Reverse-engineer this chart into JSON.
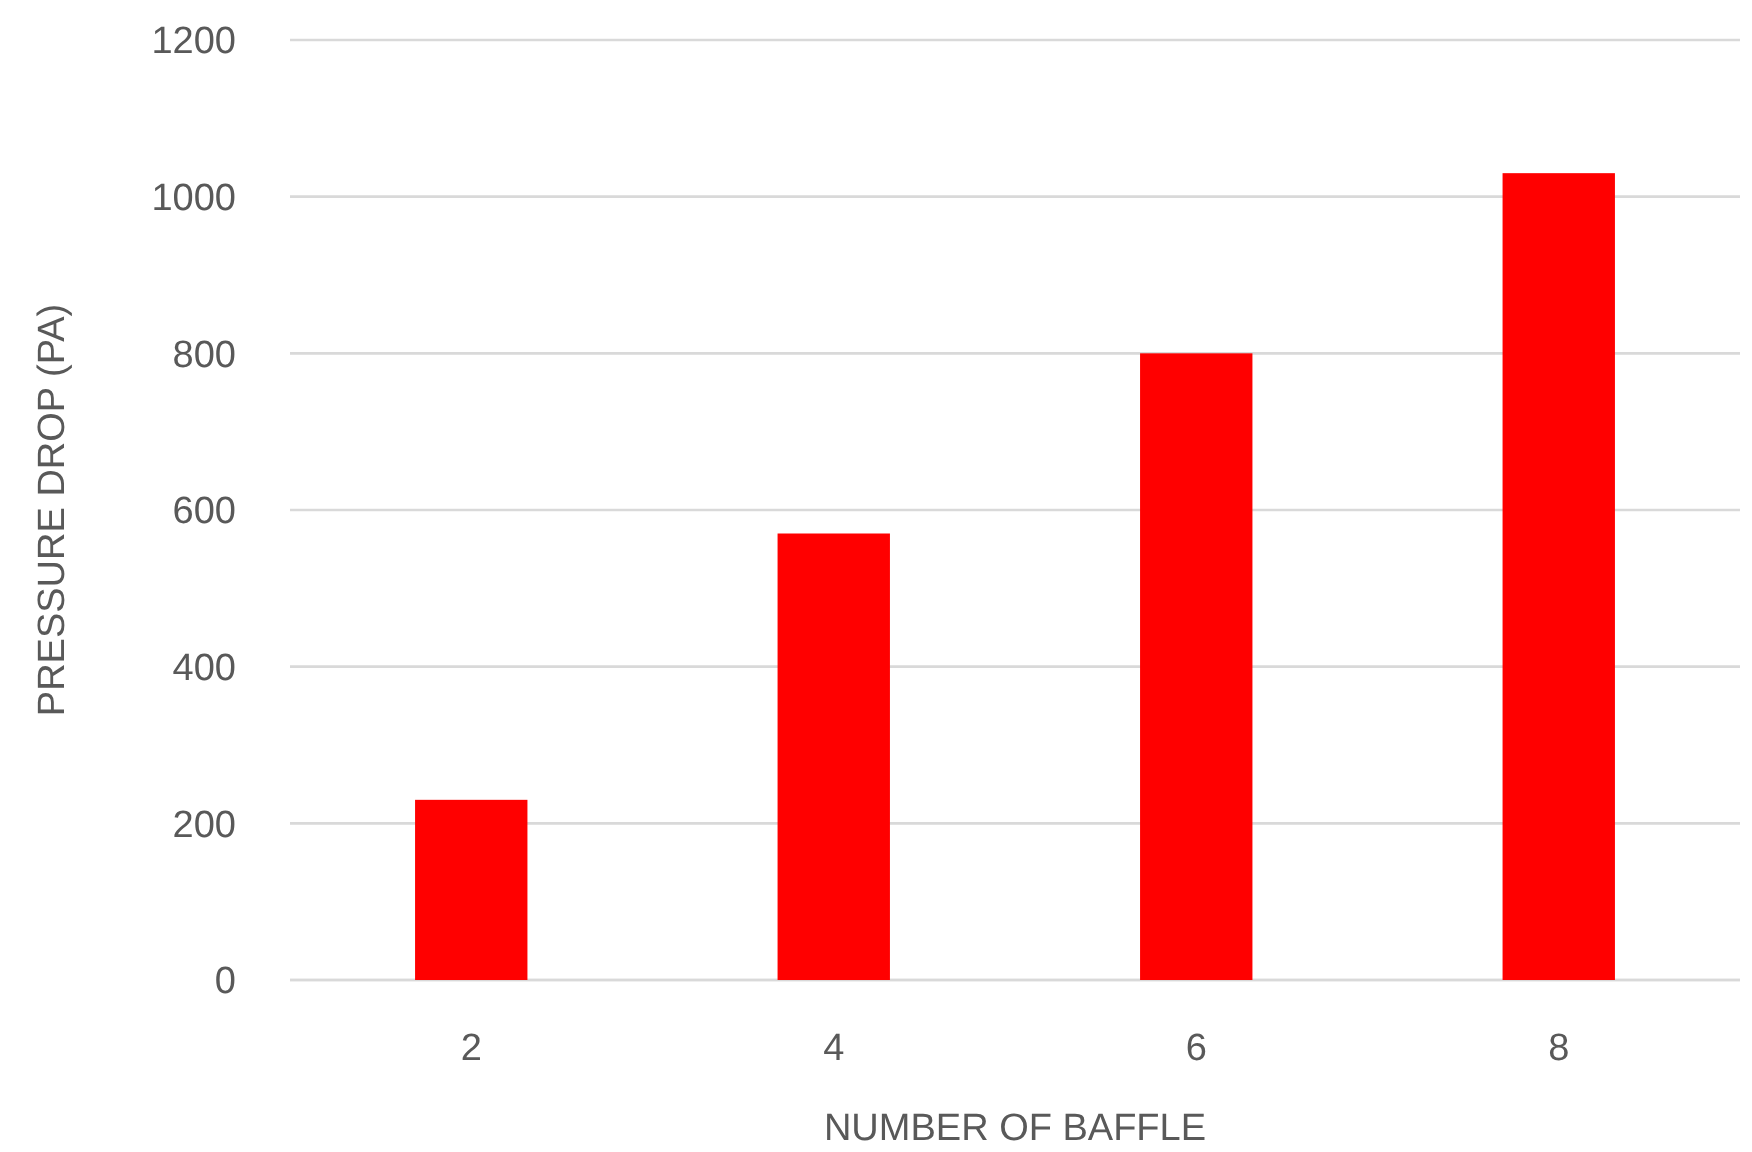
{
  "chart_data": {
    "type": "bar",
    "xlabel": "NUMBER OF BAFFLE",
    "ylabel": "PRESSURE DROP (PA)",
    "categories": [
      "2",
      "4",
      "6",
      "8"
    ],
    "values": [
      230,
      570,
      800,
      1030
    ],
    "color": "#ff0000",
    "ylim": [
      0,
      1200
    ],
    "yticks": [
      0,
      200,
      400,
      600,
      800,
      1000,
      1200
    ],
    "grid": "y"
  }
}
